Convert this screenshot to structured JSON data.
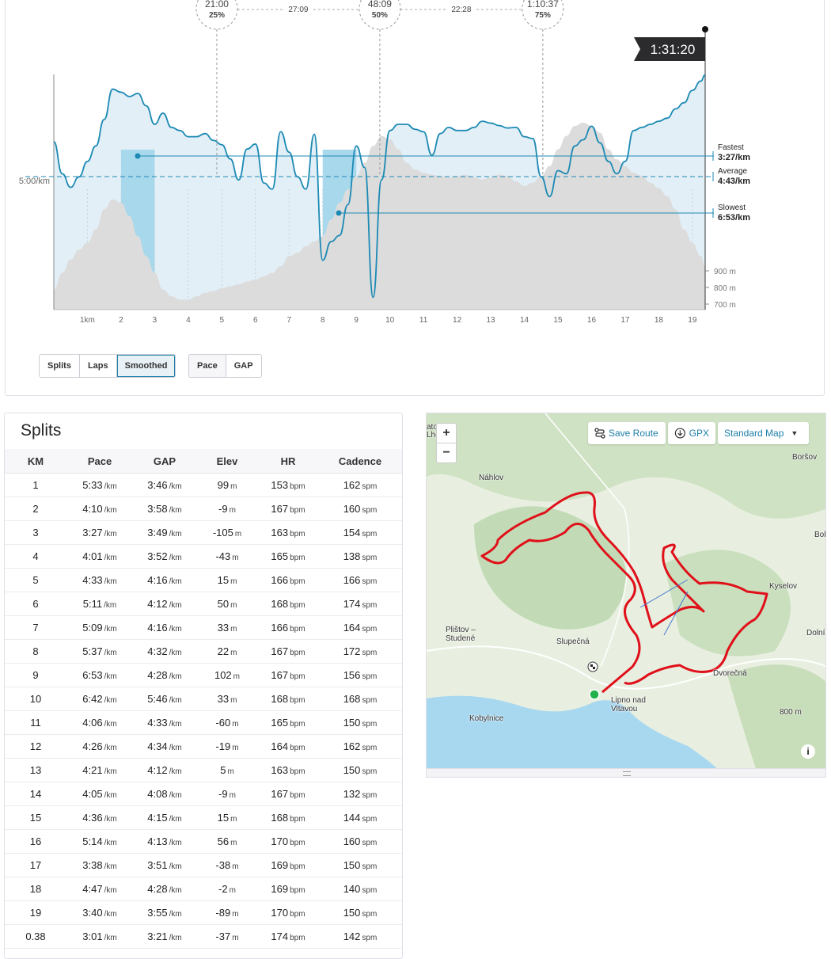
{
  "chart": {
    "elapsed_total": "1:31:20",
    "time_markers": [
      {
        "time": "21:00",
        "pct": "25%",
        "km": 4.85
      },
      {
        "time": "48:09",
        "pct": "50%",
        "km": 9.7
      },
      {
        "time": "1:10:37",
        "pct": "75%",
        "km": 14.55
      }
    ],
    "segment_times": [
      "27:09",
      "22:28"
    ],
    "y_reference_label": "5:00/km",
    "fastest": {
      "label": "Fastest",
      "value": "3:27/km"
    },
    "average": {
      "label": "Average",
      "value": "4:43/km"
    },
    "slowest": {
      "label": "Slowest",
      "value": "6:53/km"
    },
    "elevation_ticks": [
      "900 m",
      "800 m",
      "700 m"
    ],
    "x_tick_labels": [
      "1km",
      "2",
      "3",
      "4",
      "5",
      "6",
      "7",
      "8",
      "9",
      "10",
      "11",
      "12",
      "13",
      "14",
      "15",
      "16",
      "17",
      "18",
      "19"
    ]
  },
  "chart_data": {
    "type": "line",
    "xlabel": "",
    "ylabel": "",
    "x": [
      0,
      0.25,
      0.5,
      0.75,
      1,
      1.25,
      1.5,
      1.75,
      2,
      2.25,
      2.5,
      2.75,
      3,
      3.25,
      3.5,
      3.75,
      4,
      4.25,
      4.5,
      4.75,
      5,
      5.25,
      5.5,
      5.75,
      6,
      6.25,
      6.5,
      6.75,
      7,
      7.25,
      7.5,
      7.75,
      8,
      8.25,
      8.5,
      8.75,
      9,
      9.25,
      9.5,
      9.75,
      10,
      10.25,
      10.5,
      10.75,
      11,
      11.25,
      11.5,
      11.75,
      12,
      12.25,
      12.5,
      12.75,
      13,
      13.25,
      13.5,
      13.75,
      14,
      14.25,
      14.5,
      14.75,
      15,
      15.25,
      15.5,
      15.75,
      16,
      16.25,
      16.5,
      16.75,
      17,
      17.25,
      17.5,
      17.75,
      18,
      18.25,
      18.5,
      18.75,
      19,
      19.25,
      19.38
    ],
    "series": [
      {
        "values": [
          4.78,
          5.3,
          5.52,
          5.35,
          5.1,
          4.85,
          4.42,
          3.93,
          3.98,
          4.05,
          4.0,
          4.2,
          4.5,
          4.32,
          4.55,
          4.6,
          4.7,
          4.7,
          4.65,
          4.76,
          4.83,
          5.06,
          5.4,
          4.9,
          4.82,
          5.45,
          5.55,
          4.62,
          4.95,
          5.35,
          5.55,
          4.66,
          6.7,
          6.4,
          6.3,
          5.8,
          4.85,
          5.2,
          7.3,
          5.4,
          4.6,
          4.5,
          4.5,
          4.58,
          4.62,
          5.0,
          4.65,
          4.55,
          4.6,
          4.6,
          4.55,
          4.45,
          4.48,
          4.52,
          4.56,
          4.55,
          4.7,
          4.73,
          5.35,
          5.67,
          5.25,
          5.3,
          4.85,
          4.75,
          4.53,
          4.8,
          5.1,
          5.3,
          5.1,
          4.6,
          4.55,
          4.5,
          4.45,
          4.4,
          4.25,
          4.15,
          3.95,
          3.8,
          3.7
        ],
        "elevation_m": [
          710,
          735,
          755,
          770,
          780,
          800,
          830,
          845,
          840,
          820,
          790,
          760,
          735,
          710,
          700,
          695,
          695,
          700,
          705,
          708,
          712,
          715,
          718,
          722,
          725,
          730,
          735,
          745,
          760,
          765,
          775,
          782,
          790,
          815,
          840,
          860,
          880,
          900,
          925,
          940,
          935,
          920,
          900,
          890,
          885,
          882,
          880,
          878,
          880,
          882,
          878,
          875,
          878,
          882,
          880,
          872,
          865,
          870,
          880,
          895,
          920,
          940,
          955,
          960,
          955,
          945,
          920,
          905,
          895,
          885,
          880,
          870,
          862,
          850,
          830,
          800,
          780,
          760,
          745
        ]
      }
    ],
    "highlighted_ranges_km": [
      [
        2,
        3
      ],
      [
        8,
        9
      ]
    ],
    "xlim": [
      0,
      19.38
    ],
    "pace_ylim_min_per_km": [
      3.5,
      7.5
    ],
    "elevation_ylim_m": [
      680,
      1050
    ]
  },
  "controls": {
    "view_buttons": [
      "Splits",
      "Laps",
      "Smoothed"
    ],
    "active_view": "Smoothed",
    "metric_buttons": [
      "Pace",
      "GAP"
    ],
    "active_metric": "Pace"
  },
  "splits": {
    "title": "Splits",
    "headers": [
      "KM",
      "Pace",
      "GAP",
      "Elev",
      "HR",
      "Cadence"
    ],
    "rows": [
      {
        "km": "1",
        "pace": "5:33",
        "gap": "3:46",
        "elev": "99",
        "hr": "153",
        "cad": "162"
      },
      {
        "km": "2",
        "pace": "4:10",
        "gap": "3:58",
        "elev": "-9",
        "hr": "167",
        "cad": "160"
      },
      {
        "km": "3",
        "pace": "3:27",
        "gap": "3:49",
        "elev": "-105",
        "hr": "163",
        "cad": "154"
      },
      {
        "km": "4",
        "pace": "4:01",
        "gap": "3:52",
        "elev": "-43",
        "hr": "165",
        "cad": "138"
      },
      {
        "km": "5",
        "pace": "4:33",
        "gap": "4:16",
        "elev": "15",
        "hr": "166",
        "cad": "166"
      },
      {
        "km": "6",
        "pace": "5:11",
        "gap": "4:12",
        "elev": "50",
        "hr": "168",
        "cad": "174"
      },
      {
        "km": "7",
        "pace": "5:09",
        "gap": "4:16",
        "elev": "33",
        "hr": "166",
        "cad": "164"
      },
      {
        "km": "8",
        "pace": "5:37",
        "gap": "4:32",
        "elev": "22",
        "hr": "167",
        "cad": "172"
      },
      {
        "km": "9",
        "pace": "6:53",
        "gap": "4:28",
        "elev": "102",
        "hr": "167",
        "cad": "156"
      },
      {
        "km": "10",
        "pace": "6:42",
        "gap": "5:46",
        "elev": "33",
        "hr": "168",
        "cad": "168"
      },
      {
        "km": "11",
        "pace": "4:06",
        "gap": "4:33",
        "elev": "-60",
        "hr": "165",
        "cad": "150"
      },
      {
        "km": "12",
        "pace": "4:26",
        "gap": "4:34",
        "elev": "-19",
        "hr": "164",
        "cad": "162"
      },
      {
        "km": "13",
        "pace": "4:21",
        "gap": "4:12",
        "elev": "5",
        "hr": "163",
        "cad": "150"
      },
      {
        "km": "14",
        "pace": "4:05",
        "gap": "4:08",
        "elev": "-9",
        "hr": "167",
        "cad": "132"
      },
      {
        "km": "15",
        "pace": "4:36",
        "gap": "4:15",
        "elev": "15",
        "hr": "168",
        "cad": "144"
      },
      {
        "km": "16",
        "pace": "5:14",
        "gap": "4:13",
        "elev": "56",
        "hr": "170",
        "cad": "160"
      },
      {
        "km": "17",
        "pace": "3:38",
        "gap": "3:51",
        "elev": "-38",
        "hr": "169",
        "cad": "150"
      },
      {
        "km": "18",
        "pace": "4:47",
        "gap": "4:28",
        "elev": "-2",
        "hr": "169",
        "cad": "140"
      },
      {
        "km": "19",
        "pace": "3:40",
        "gap": "3:55",
        "elev": "-89",
        "hr": "170",
        "cad": "150"
      },
      {
        "km": "0.38",
        "pace": "3:01",
        "gap": "3:21",
        "elev": "-37",
        "hr": "174",
        "cad": "142"
      }
    ],
    "units": {
      "pace": "/km",
      "gap": "/km",
      "elev": "m",
      "hr": "bpm",
      "cad": "spm"
    }
  },
  "map": {
    "zoom_in": "+",
    "zoom_out": "−",
    "save_route": "Save Route",
    "gpx": "GPX",
    "map_style": "Standard Map",
    "places": [
      "Náhlov",
      "Boršov",
      "Kyselov",
      "Bol",
      "Dolní",
      "Slupečná",
      "Plištov – Studené",
      "Lipno nad Vltavou",
      "Kobylnice",
      "Dvorečná",
      "800 m",
      "ato",
      "Lhc"
    ],
    "colors": {
      "route": "#e0101a",
      "water": "#a8d8f0",
      "forest": "#c8dfbe",
      "start": "#22b24c"
    }
  }
}
